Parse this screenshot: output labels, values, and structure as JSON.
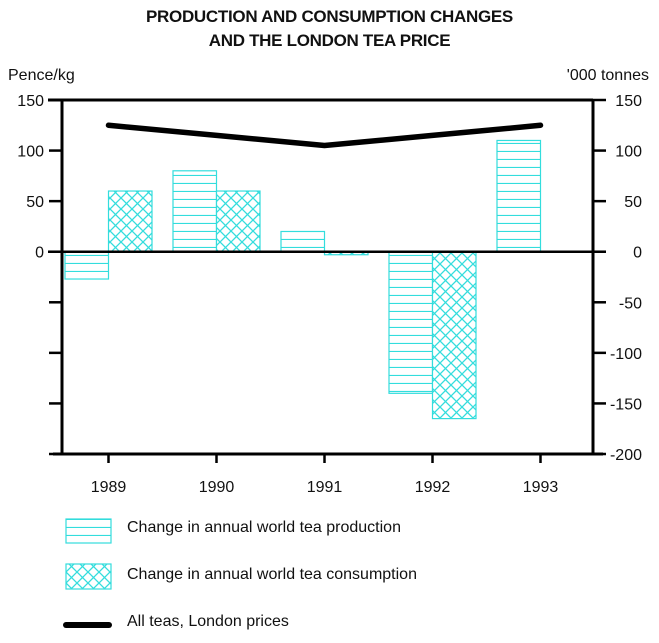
{
  "chart_data": {
    "type": "bar",
    "title": "PRODUCTION AND CONSUMPTION CHANGES",
    "subtitle": "AND THE LONDON TEA PRICE",
    "ylabel_left": "Pence/kg",
    "ylabel_right": "'000 tonnes",
    "xlabel": "",
    "categories": [
      "1989",
      "1990",
      "1991",
      "1992",
      "1993"
    ],
    "left_ticks": [
      "150",
      "100",
      "50",
      "0"
    ],
    "right_ticks": [
      "150",
      "100",
      "50",
      "0",
      "-50",
      "-100",
      "-150",
      "-200"
    ],
    "ylim": [
      -200,
      150
    ],
    "grid": false,
    "legend_position": "bottom",
    "series": [
      {
        "name": "Change in annual world tea production",
        "type": "bar",
        "pattern": "horizontal-lines",
        "axis": "right",
        "values": [
          -27,
          80,
          20,
          -140,
          110
        ]
      },
      {
        "name": "Change in annual world tea consumption",
        "type": "bar",
        "pattern": "crosshatch",
        "axis": "right",
        "values": [
          60,
          60,
          -3,
          -165,
          null
        ]
      },
      {
        "name": "All teas, London prices",
        "type": "line",
        "axis": "left",
        "values": [
          125,
          115,
          105,
          115,
          125
        ]
      }
    ],
    "colors": {
      "bars": "#33dddd",
      "line": "#000000",
      "axes": "#000000"
    }
  }
}
